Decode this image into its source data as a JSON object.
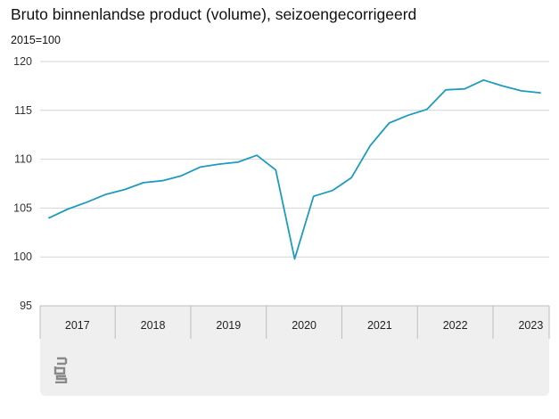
{
  "chart_data": {
    "type": "line",
    "title": "Bruto binnenlandse product (volume), seizoengecorrigeerd",
    "ylabel": "2015=100",
    "ylim": [
      95,
      120
    ],
    "yticks": [
      95,
      100,
      105,
      110,
      115,
      120
    ],
    "grid": true,
    "x_groups": [
      "2017",
      "2018",
      "2019",
      "2020",
      "2021",
      "2022",
      "2023"
    ],
    "x": [
      "2017 Q1",
      "2017 Q2",
      "2017 Q3",
      "2017 Q4",
      "2018 Q1",
      "2018 Q2",
      "2018 Q3",
      "2018 Q4",
      "2019 Q1",
      "2019 Q2",
      "2019 Q3",
      "2019 Q4",
      "2020 Q1",
      "2020 Q2",
      "2020 Q3",
      "2020 Q4",
      "2021 Q1",
      "2021 Q2",
      "2021 Q3",
      "2021 Q4",
      "2022 Q1",
      "2022 Q2",
      "2022 Q3",
      "2022 Q4",
      "2023 Q1",
      "2023 Q2",
      "2023 Q3"
    ],
    "series": [
      {
        "values": [
          104.0,
          104.9,
          105.6,
          106.4,
          106.9,
          107.6,
          107.8,
          108.3,
          109.2,
          109.5,
          109.7,
          110.4,
          108.9,
          99.8,
          106.2,
          106.8,
          108.1,
          111.4,
          113.7,
          114.5,
          115.1,
          117.1,
          117.2,
          118.1,
          117.5,
          117.0,
          116.8
        ],
        "color": "#1f9bbf"
      }
    ]
  },
  "footer": {
    "logo": "cbs-logo"
  }
}
